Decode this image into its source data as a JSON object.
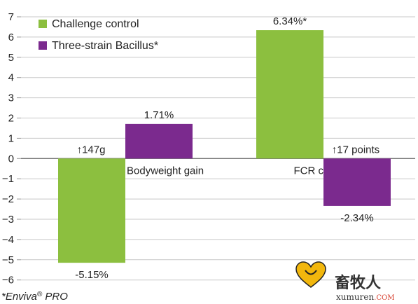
{
  "chart_data": {
    "type": "bar",
    "categories": [
      "Bodyweight gain",
      "FCR c"
    ],
    "series": [
      {
        "name": "Challenge control",
        "color": "#8cbf3f",
        "values": [
          -5.15,
          6.34
        ],
        "labels": [
          "-5.15%",
          "6.34%*"
        ]
      },
      {
        "name": "Three-strain Bacillus*",
        "color": "#7b2a8e",
        "values": [
          1.71,
          -2.34
        ],
        "labels": [
          "1.71%",
          "-2.34%"
        ]
      }
    ],
    "annotations": [
      "↑147g",
      "↑17 points"
    ],
    "yticks": [
      7,
      6,
      5,
      4,
      3,
      2,
      1,
      0,
      -1,
      -2,
      -3,
      -4,
      -5,
      -6
    ],
    "ylim": [
      -6,
      7
    ],
    "grid": true,
    "legend_position": "top-left",
    "title": "",
    "xlabel": "",
    "ylabel": ""
  },
  "footnote": {
    "prefix": "*Enviva",
    "registered": "®",
    "suffix": " PRO"
  },
  "watermark": {
    "chinese": "畜牧人",
    "domain": "xumuren",
    "tld": ".COM"
  }
}
